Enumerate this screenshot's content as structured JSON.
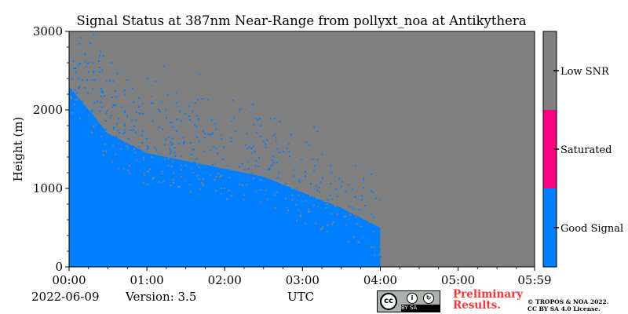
{
  "chart_data": {
    "type": "heatmap",
    "title": "Signal Status at 387nm Near-Range from pollyxt_noa at Antikythera",
    "xlabel": "UTC",
    "ylabel": "Height (m)",
    "xlim": [
      "00:00",
      "05:59"
    ],
    "ylim": [
      0,
      3000
    ],
    "x_ticks": [
      "00:00",
      "01:00",
      "02:00",
      "03:00",
      "04:00",
      "05:00",
      "05:59"
    ],
    "y_ticks": [
      0,
      1000,
      2000,
      3000
    ],
    "data_end_time": "04:00",
    "categories": [
      "Good Signal",
      "Saturated",
      "Low SNR"
    ],
    "colors": {
      "good_signal": "#0080ff",
      "saturated": "#ff0080",
      "low_snr": "#808080"
    },
    "colorbar_labels": [
      "Low SNR",
      "Saturated",
      "Good Signal"
    ],
    "good_signal_top_height_m": [
      {
        "time": "00:00",
        "height": 2300
      },
      {
        "time": "00:30",
        "height": 1700
      },
      {
        "time": "01:00",
        "height": 1450
      },
      {
        "time": "01:30",
        "height": 1350
      },
      {
        "time": "02:00",
        "height": 1250
      },
      {
        "time": "02:30",
        "height": 1150
      },
      {
        "time": "03:00",
        "height": 950
      },
      {
        "time": "03:30",
        "height": 750
      },
      {
        "time": "04:00",
        "height": 500
      }
    ]
  },
  "footer": {
    "date": "2022-06-09",
    "version": "Version: 3.5",
    "xlabel": "UTC",
    "license_badge_text": "BY SA",
    "license_badge_cc": "cc",
    "preliminary_line1": "Preliminary",
    "preliminary_line2": "Results.",
    "copyright_line1": "© TROPOS & NOA 2022.",
    "copyright_line2": "CC BY SA 4.0 License."
  }
}
